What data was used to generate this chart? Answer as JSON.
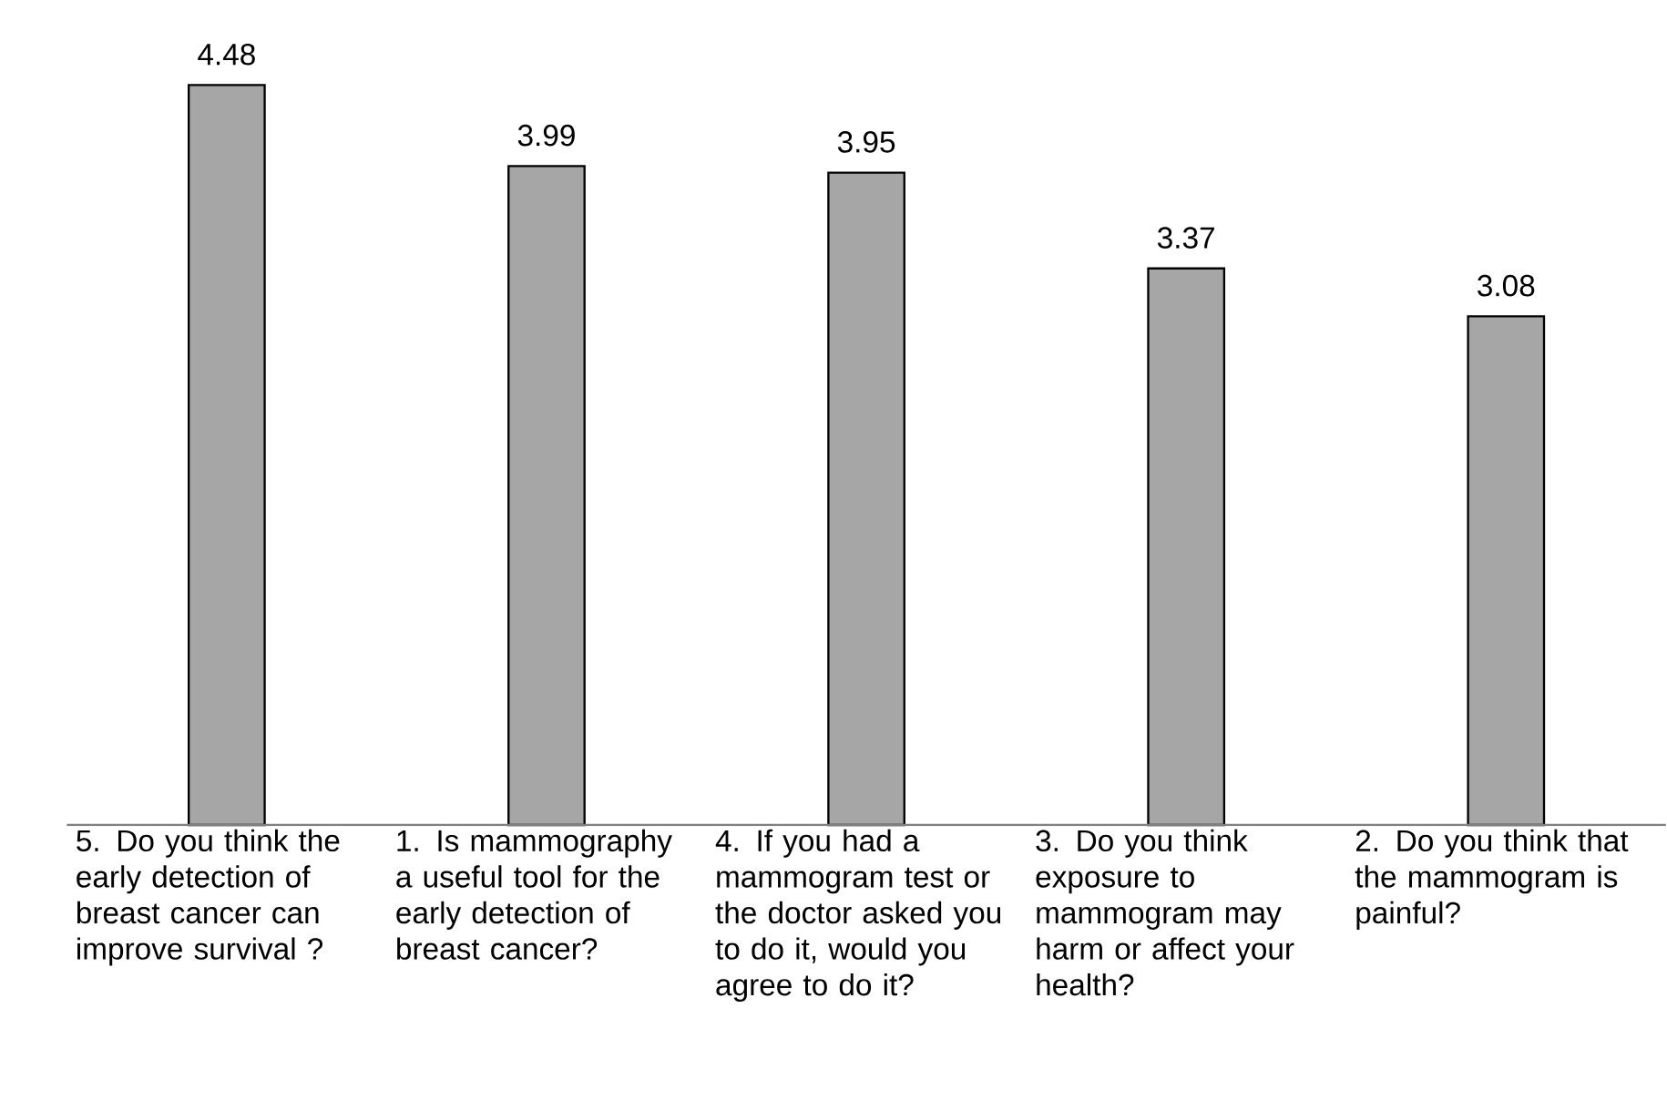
{
  "chart_data": {
    "type": "bar",
    "categories": [
      "5. Do you think the early detection of breast cancer can improve survival ?",
      "1. Is mammography a useful tool for the early detection of breast cancer?",
      "4. If you had a mammogram test or the doctor asked you to do it, would you agree to do it?",
      "3. Do you think exposure to mammogram may harm or affect your health?",
      "2. Do you think that the mammogram is painful?"
    ],
    "values": [
      4.48,
      3.99,
      3.95,
      3.37,
      3.08
    ],
    "color": "#a6a6a6",
    "data_labels": true
  }
}
